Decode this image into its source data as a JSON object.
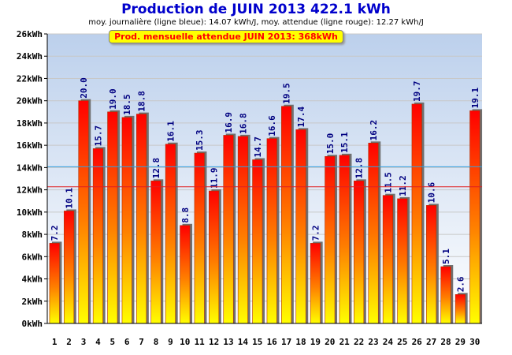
{
  "chart_data": {
    "type": "bar",
    "title": "Production de JUIN 2013  422.1 kWh",
    "subtitle": "moy. journalière (ligne bleue): 14.07 kWh/J,   moy. attendue (ligne rouge): 12.27 kWh/J",
    "annotation": "Prod. mensuelle attendue JUIN 2013: 368kWh",
    "categories": [
      "1",
      "2",
      "3",
      "4",
      "5",
      "6",
      "7",
      "8",
      "9",
      "10",
      "11",
      "12",
      "13",
      "14",
      "15",
      "16",
      "17",
      "18",
      "19",
      "20",
      "21",
      "22",
      "23",
      "24",
      "25",
      "26",
      "27",
      "28",
      "29",
      "30"
    ],
    "values": [
      7.2,
      10.1,
      20.0,
      15.7,
      19.0,
      18.5,
      18.8,
      12.8,
      16.1,
      8.8,
      15.3,
      11.9,
      16.9,
      16.8,
      14.7,
      16.6,
      19.5,
      17.4,
      7.2,
      15.0,
      15.1,
      12.8,
      16.2,
      11.5,
      11.2,
      19.7,
      10.6,
      5.1,
      2.6,
      19.1
    ],
    "value_labels": [
      "7.2",
      "10.1",
      "20.0",
      "15.7",
      "19.0",
      "18.5",
      "18.8",
      "12.8",
      "16.1",
      "8.8",
      "15.3",
      "11.9",
      "16.9",
      "16.8",
      "14.7",
      "16.6",
      "19.5",
      "17.4",
      "7.2",
      "15.0",
      "15.1",
      "12.8",
      "16.2",
      "11.5",
      "11.2",
      "19.7",
      "10.6",
      "5.1",
      "2.6",
      "19.1"
    ],
    "ylim": [
      0,
      26
    ],
    "ytick_values": [
      0,
      2,
      4,
      6,
      8,
      10,
      12,
      14,
      16,
      18,
      20,
      22,
      24,
      26
    ],
    "ytick_labels": [
      "0kWh",
      "2kWh",
      "4kWh",
      "6kWh",
      "8kWh",
      "10kWh",
      "12kWh",
      "14kWh",
      "16kWh",
      "18kWh",
      "20kWh",
      "22kWh",
      "24kWh",
      "26kWh"
    ],
    "avg_daily": 14.07,
    "avg_expected": 12.27,
    "grid": true,
    "colors": {
      "title": "#0000cc",
      "bar_top": "#ff0000",
      "bar_bottom": "#ffff00",
      "avg_line": "#33a0e0",
      "expected_line": "#e02020",
      "value_label": "#000080",
      "annotation_bg": "#ffff00",
      "annotation_text": "#ff0000"
    }
  }
}
